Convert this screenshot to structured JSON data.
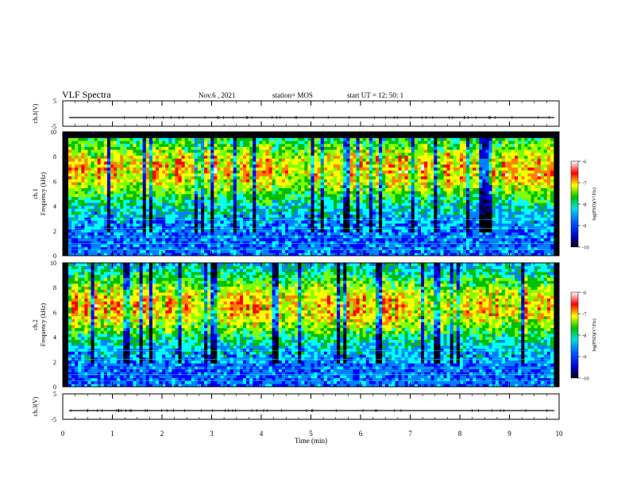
{
  "header": {
    "title": "VLF Spectra",
    "date": "Nov.6 , 2021",
    "station": "station= MOS",
    "start": "start UT = 12: 50: 1"
  },
  "chart_data": [
    {
      "type": "line",
      "panel": "ch1-waveform",
      "ylabel": "ch.1(V)",
      "ylim": [
        -5,
        5
      ],
      "yticks": [
        "5",
        "-5"
      ],
      "x": [
        0,
        10
      ],
      "values": [
        0,
        0
      ]
    },
    {
      "type": "heatmap",
      "panel": "ch1-spectrogram",
      "ylabel": "ch.1\nFrequency (kHz)",
      "ylim": [
        0,
        10
      ],
      "yticks": [
        "0",
        "2",
        "4",
        "6",
        "8",
        "10"
      ],
      "xlim": [
        0,
        10
      ],
      "colorbar": {
        "label": "log(PSD)(V²/Hz)",
        "range": [
          -10,
          -6
        ],
        "ticks": [
          "-6",
          "-7",
          "-8",
          "-9",
          "-10"
        ]
      },
      "band_center_khz": 7.0,
      "upper_cutoff_khz": 9.5
    },
    {
      "type": "heatmap",
      "panel": "ch2-spectrogram",
      "ylabel": "ch.2\nFrequency (kHz)",
      "ylim": [
        0,
        10
      ],
      "yticks": [
        "0",
        "2",
        "4",
        "6",
        "8",
        "10"
      ],
      "xlim": [
        0,
        10
      ],
      "colorbar": {
        "label": "log(PSD)(V²/Hz)",
        "range": [
          -10,
          -6
        ],
        "ticks": [
          "-6",
          "-7",
          "-8",
          "-9",
          "-10"
        ]
      },
      "band_center_khz": 6.5,
      "upper_cutoff_khz": 10
    },
    {
      "type": "line",
      "panel": "ch3-waveform",
      "ylabel": "ch.3(V)",
      "ylim": [
        -5,
        5
      ],
      "yticks": [
        "5",
        "-5"
      ],
      "x": [
        0,
        10
      ],
      "values": [
        0,
        0
      ]
    }
  ],
  "xaxis": {
    "label": "Time (min)",
    "ticks": [
      "0",
      "1",
      "2",
      "3",
      "4",
      "5",
      "6",
      "7",
      "8",
      "9",
      "10"
    ]
  }
}
